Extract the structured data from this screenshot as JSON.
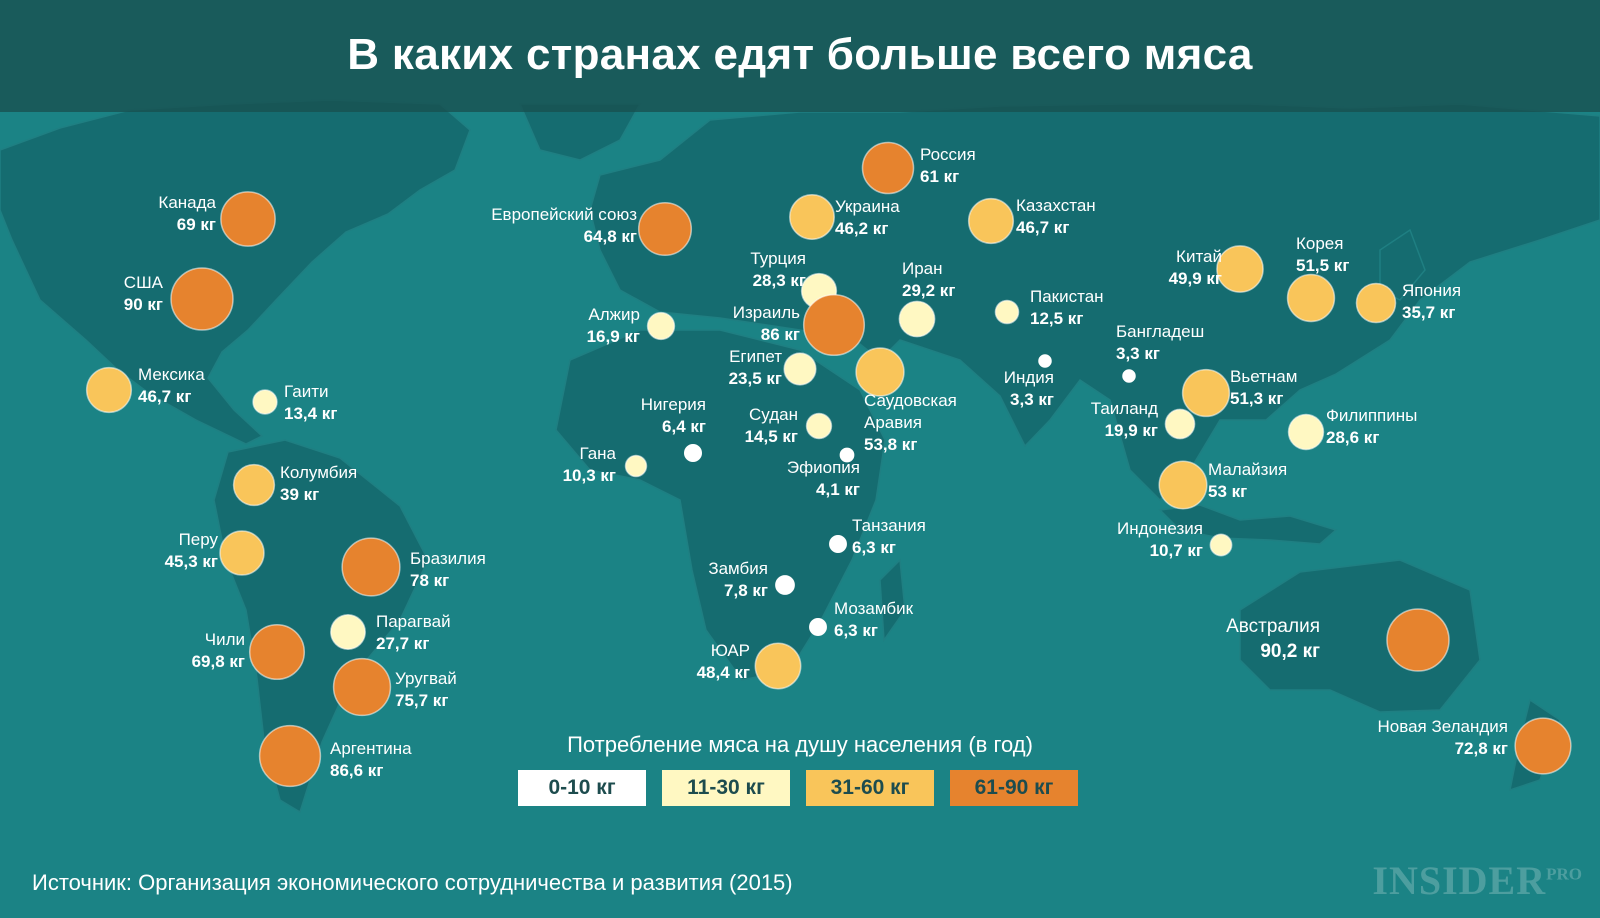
{
  "title": "В каких странах едят больше всего мяса",
  "legend": {
    "title": "Потребление мяса на душу населения (в год)",
    "categories": [
      {
        "label": "0-10 кг",
        "color": "#ffffff"
      },
      {
        "label": "11-30 кг",
        "color": "#fff8c2"
      },
      {
        "label": "31-60 кг",
        "color": "#f9c55a"
      },
      {
        "label": "61-90 кг",
        "color": "#e6832e"
      }
    ]
  },
  "colors": {
    "ocean": "#1b8385",
    "land": "#156c70",
    "header": "#185050"
  },
  "countries": [
    {
      "name": "Канада",
      "value": "69 кг",
      "kg": 69
    },
    {
      "name": "США",
      "value": "90 кг",
      "kg": 90
    },
    {
      "name": "Мексика",
      "value": "46,7 кг",
      "kg": 46.7
    },
    {
      "name": "Гаити",
      "value": "13,4 кг",
      "kg": 13.4
    },
    {
      "name": "Колумбия",
      "value": "39 кг",
      "kg": 39
    },
    {
      "name": "Перу",
      "value": "45,3 кг",
      "kg": 45.3
    },
    {
      "name": "Бразилия",
      "value": "78 кг",
      "kg": 78
    },
    {
      "name": "Парагвай",
      "value": "27,7 кг",
      "kg": 27.7
    },
    {
      "name": "Чили",
      "value": "69,8 кг",
      "kg": 69.8
    },
    {
      "name": "Уругвай",
      "value": "75,7 кг",
      "kg": 75.7
    },
    {
      "name": "Аргентина",
      "value": "86,6 кг",
      "kg": 86.6
    },
    {
      "name": "Европейский союз",
      "value": "64,8 кг",
      "kg": 64.8
    },
    {
      "name": "Украина",
      "value": "46,2 кг",
      "kg": 46.2
    },
    {
      "name": "Россия",
      "value": "61 кг",
      "kg": 61
    },
    {
      "name": "Казахстан",
      "value": "46,7 кг",
      "kg": 46.7
    },
    {
      "name": "Турция",
      "value": "28,3 кг",
      "kg": 28.3
    },
    {
      "name": "Иран",
      "value": "29,2 кг",
      "kg": 29.2
    },
    {
      "name": "Пакистан",
      "value": "12,5 кг",
      "kg": 12.5
    },
    {
      "name": "Алжир",
      "value": "16,9 кг",
      "kg": 16.9
    },
    {
      "name": "Израиль",
      "value": "86 кг",
      "kg": 86
    },
    {
      "name": "Египет",
      "value": "23,5 кг",
      "kg": 23.5
    },
    {
      "name": "Саудовская Аравия",
      "value": "53,8 кг",
      "kg": 53.8
    },
    {
      "name": "Индия",
      "value": "3,3 кг",
      "kg": 3.3
    },
    {
      "name": "Бангладеш",
      "value": "3,3 кг",
      "kg": 3.3
    },
    {
      "name": "Китай",
      "value": "49,9 кг",
      "kg": 49.9
    },
    {
      "name": "Корея",
      "value": "51,5 кг",
      "kg": 51.5
    },
    {
      "name": "Япония",
      "value": "35,7 кг",
      "kg": 35.7
    },
    {
      "name": "Вьетнам",
      "value": "51,3 кг",
      "kg": 51.3
    },
    {
      "name": "Таиланд",
      "value": "19,9 кг",
      "kg": 19.9
    },
    {
      "name": "Филиппины",
      "value": "28,6 кг",
      "kg": 28.6
    },
    {
      "name": "Малайзия",
      "value": "53 кг",
      "kg": 53
    },
    {
      "name": "Индонезия",
      "value": "10,7 кг",
      "kg": 10.7
    },
    {
      "name": "Нигерия",
      "value": "6,4 кг",
      "kg": 6.4
    },
    {
      "name": "Гана",
      "value": "10,3 кг",
      "kg": 10.3
    },
    {
      "name": "Судан",
      "value": "14,5 кг",
      "kg": 14.5
    },
    {
      "name": "Эфиопия",
      "value": "4,1 кг",
      "kg": 4.1
    },
    {
      "name": "Танзания",
      "value": "6,3 кг",
      "kg": 6.3
    },
    {
      "name": "Замбия",
      "value": "7,8 кг",
      "kg": 7.8
    },
    {
      "name": "Мозамбик",
      "value": "6,3 кг",
      "kg": 6.3
    },
    {
      "name": "ЮАР",
      "value": "48,4 кг",
      "kg": 48.4
    },
    {
      "name": "Австралия",
      "value": "90,2 кг",
      "kg": 90.2
    },
    {
      "name": "Новая Зеландия",
      "value": "72,8 кг",
      "kg": 72.8
    }
  ],
  "source": "Источник: Организация экономического сотрудничества и развития (2015)",
  "logo": {
    "main": "INSIDER",
    "sup": "PRO"
  }
}
